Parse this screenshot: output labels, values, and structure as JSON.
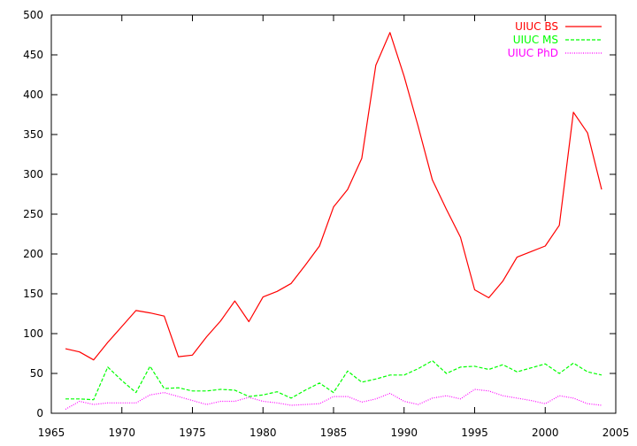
{
  "chart_data": {
    "type": "line",
    "title": "",
    "xlabel": "",
    "ylabel": "",
    "xlim": [
      1965,
      2005
    ],
    "ylim": [
      0,
      500
    ],
    "xticks": [
      "1965",
      "1970",
      "1975",
      "1980",
      "1985",
      "1990",
      "1995",
      "2000",
      "2005"
    ],
    "yticks": [
      "0",
      "50",
      "100",
      "150",
      "200",
      "250",
      "300",
      "350",
      "400",
      "450",
      "500"
    ],
    "grid": false,
    "legend_position": "top-right",
    "x": [
      1966,
      1967,
      1968,
      1969,
      1970,
      1971,
      1972,
      1973,
      1974,
      1975,
      1976,
      1977,
      1978,
      1979,
      1980,
      1981,
      1982,
      1983,
      1984,
      1985,
      1986,
      1987,
      1988,
      1989,
      1990,
      1991,
      1992,
      1993,
      1994,
      1995,
      1996,
      1997,
      1998,
      1999,
      2000,
      2001,
      2002,
      2003,
      2004
    ],
    "series": [
      {
        "name": "UIUC BS",
        "color": "#ff0000",
        "dash": "solid",
        "values": [
          81,
          77,
          67,
          89,
          109,
          129,
          126,
          122,
          71,
          73,
          96,
          116,
          141,
          115,
          146,
          153,
          163,
          186,
          210,
          259,
          281,
          320,
          437,
          478,
          423,
          360,
          293,
          256,
          221,
          155,
          145,
          166,
          196,
          203,
          210,
          236,
          378,
          352,
          281
        ]
      },
      {
        "name": "UIUC MS",
        "color": "#00ff00",
        "dash": "dashed",
        "values": [
          18,
          18,
          17,
          58,
          41,
          26,
          59,
          31,
          32,
          28,
          28,
          30,
          29,
          21,
          23,
          27,
          19,
          29,
          38,
          26,
          53,
          39,
          43,
          48,
          48,
          56,
          66,
          50,
          58,
          59,
          55,
          61,
          52,
          57,
          62,
          50,
          63,
          52,
          48
        ]
      },
      {
        "name": "UIUC PhD",
        "color": "#ff00ff",
        "dash": "dotted",
        "values": [
          5,
          15,
          11,
          13,
          13,
          13,
          23,
          26,
          21,
          16,
          11,
          15,
          15,
          20,
          15,
          13,
          10,
          11,
          12,
          21,
          21,
          14,
          18,
          25,
          15,
          11,
          19,
          22,
          18,
          30,
          28,
          22,
          19,
          16,
          12,
          22,
          19,
          12,
          10
        ]
      }
    ]
  }
}
